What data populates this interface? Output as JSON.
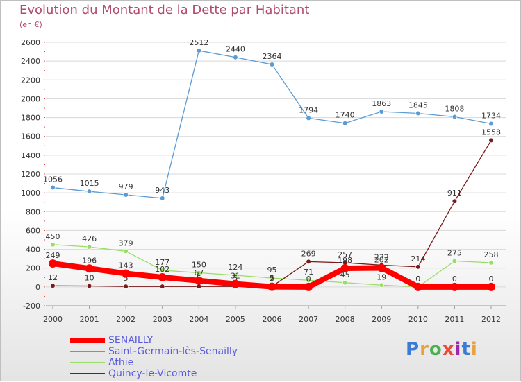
{
  "title": "Evolution du Montant de la Dette par Habitant",
  "subtitle": "(en €)",
  "logo": "Proxiti",
  "colors": {
    "title": "#b04a70",
    "axis_text": "#333333",
    "grid": "#d8d8d8",
    "legend_text": "#5a5ae0"
  },
  "chart_data": {
    "type": "line",
    "x": [
      2000,
      2001,
      2002,
      2003,
      2004,
      2005,
      2006,
      2007,
      2008,
      2009,
      2010,
      2011,
      2012
    ],
    "ylim": [
      -200,
      2600
    ],
    "yticks": [
      -200,
      0,
      200,
      400,
      600,
      800,
      1000,
      1200,
      1400,
      1600,
      1800,
      2000,
      2200,
      2400,
      2600
    ],
    "grid": true,
    "legend_position": "bottom-left",
    "series": [
      {
        "name": "SENAILLY",
        "color": "#ff0000",
        "values": [
          249,
          196,
          143,
          102,
          67,
          31,
          2,
          0,
          198,
          202,
          0,
          0,
          0
        ],
        "labels": [
          "249",
          "196",
          "143",
          "102",
          "67",
          "31",
          "2",
          "0",
          "198",
          "202",
          "0",
          "0",
          "0"
        ]
      },
      {
        "name": "Saint-Germain-lès-Senailly",
        "color": "#5b9bd5",
        "values": [
          1056,
          1015,
          979,
          943,
          2512,
          2440,
          2364,
          1794,
          1740,
          1863,
          1845,
          1808,
          1734
        ],
        "labels": [
          "1056",
          "1015",
          "979",
          "943",
          "2512",
          "2440",
          "2364",
          "1794",
          "1740",
          "1863",
          "1845",
          "1808",
          "1734"
        ]
      },
      {
        "name": "Athie",
        "color": "#99dd66",
        "values": [
          450,
          426,
          379,
          177,
          150,
          124,
          95,
          71,
          45,
          19,
          0,
          275,
          258
        ],
        "labels": [
          "450",
          "426",
          "379",
          "177",
          "150",
          "124",
          "95",
          "71",
          "45",
          "19",
          "0",
          "275",
          "258"
        ]
      },
      {
        "name": "Quincy-le-Vicomte",
        "color": "#7a1a1a",
        "values": [
          12,
          10,
          5,
          5,
          5,
          5,
          5,
          269,
          257,
          232,
          214,
          911,
          1558
        ],
        "labels": [
          "12",
          "10",
          "5",
          "5",
          "5",
          "5",
          "5",
          "269",
          "257",
          "232",
          "214",
          "911",
          "1558"
        ]
      }
    ]
  }
}
